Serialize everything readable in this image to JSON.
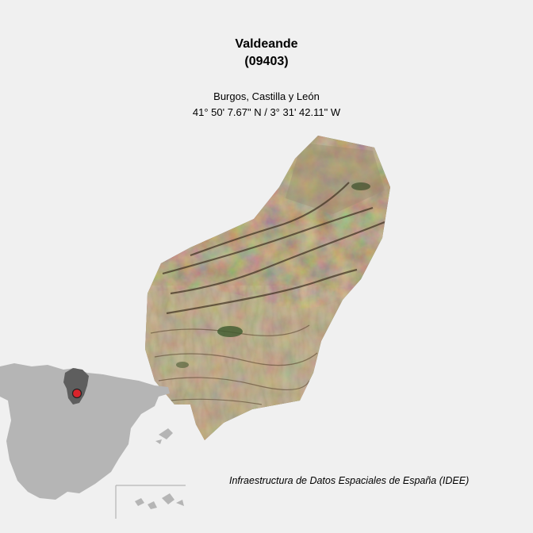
{
  "map": {
    "municipality_name": "Valdeande",
    "municipality_code": "(09403)",
    "region": "Burgos, Castilla y León",
    "coordinates": "41° 50' 7.67\" N / 3° 31' 42.11\" W",
    "credit": "Infraestructura de Datos Espaciales de España (IDEE)"
  },
  "colors": {
    "background": "#f0f0f0",
    "locator_country": "#b5b5b5",
    "locator_province": "#5e5e5e",
    "locator_marker": "#d9232b",
    "imagery_base": "#7a6446"
  }
}
